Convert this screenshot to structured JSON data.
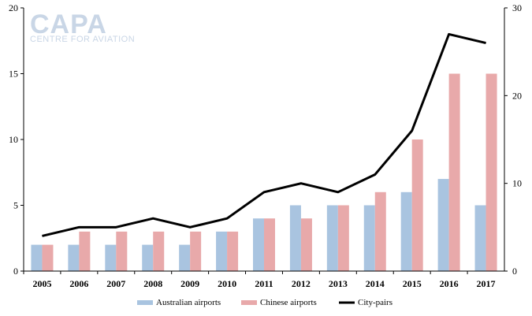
{
  "logo": {
    "main": "CAPA",
    "sub": "CENTRE FOR AVIATION"
  },
  "colors": {
    "australian": "#a9c4e0",
    "chinese": "#e8a9aa",
    "line": "#000000"
  },
  "chart_data": {
    "type": "bar",
    "categories": [
      "2005",
      "2006",
      "2007",
      "2008",
      "2009",
      "2010",
      "2011",
      "2012",
      "2013",
      "2014",
      "2015",
      "2016",
      "2017"
    ],
    "series": [
      {
        "name": "Australian airports",
        "type": "bar",
        "axis": "left",
        "values": [
          2,
          2,
          2,
          2,
          2,
          3,
          4,
          5,
          5,
          5,
          6,
          7,
          5
        ]
      },
      {
        "name": "Chinese airports",
        "type": "bar",
        "axis": "left",
        "values": [
          2,
          3,
          3,
          3,
          3,
          3,
          4,
          4,
          5,
          6,
          10,
          15,
          15
        ]
      },
      {
        "name": "City-pairs",
        "type": "line",
        "axis": "right",
        "values": [
          4,
          5,
          5,
          6,
          5,
          6,
          9,
          10,
          9,
          11,
          16,
          27,
          26
        ]
      }
    ],
    "yleft": {
      "min": 0,
      "max": 20,
      "ticks": [
        "0",
        "5",
        "10",
        "15",
        "20"
      ]
    },
    "yright": {
      "min": 0,
      "max": 30,
      "ticks": [
        "0",
        "10",
        "20",
        "30"
      ]
    },
    "legend": [
      "Australian airports",
      "Chinese airports",
      "City-pairs"
    ],
    "legend_position": "bottom",
    "grid": false
  }
}
